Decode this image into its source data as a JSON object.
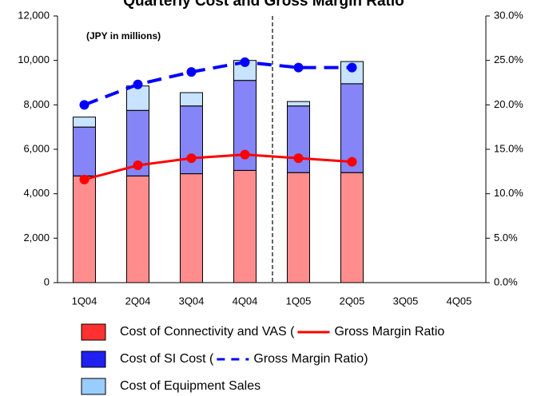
{
  "chart_data": {
    "type": "bar",
    "title": "Quarterly Cost and Gross Margin Ratio",
    "annotation": "(JPY in millions)",
    "categories": [
      "1Q04",
      "2Q04",
      "3Q04",
      "4Q04",
      "1Q05",
      "2Q05",
      "3Q05",
      "4Q05"
    ],
    "series": [
      {
        "name": "Cost of Connectivity and VAS (",
        "color": "#ff3030",
        "type": "bar",
        "values": [
          4800,
          4800,
          4900,
          5050,
          4950,
          4950,
          null,
          null
        ]
      },
      {
        "name": "Cost of SI Cost (",
        "color": "#2020f0",
        "type": "bar",
        "values": [
          2200,
          2950,
          3050,
          4050,
          3000,
          4000,
          null,
          null
        ]
      },
      {
        "name": "Cost of Equipment Sales",
        "color": "#99ccff",
        "type": "bar",
        "values": [
          450,
          1100,
          600,
          900,
          200,
          1000,
          null,
          null
        ]
      },
      {
        "name": "Gross Margin Ratio",
        "color": "#ff0000",
        "type": "line",
        "axis": "y2",
        "dashed": false,
        "values": [
          11.6,
          13.2,
          14.0,
          14.4,
          14.0,
          13.6,
          null,
          null
        ]
      },
      {
        "name": "Gross Margin Ratio)",
        "color": "#0000ff",
        "type": "line",
        "axis": "y2",
        "dashed": true,
        "values": [
          20.0,
          22.3,
          23.7,
          24.8,
          24.2,
          24.2,
          null,
          null
        ]
      }
    ],
    "stacked": true,
    "ylim": [
      0,
      12000
    ],
    "yticks": [
      0,
      {
        "value": 2000,
        "label": "2,000"
      },
      {
        "value": 4000,
        "label": "4,000"
      },
      {
        "value": 6000,
        "label": "6,000"
      },
      {
        "value": 8000,
        "label": "8,000"
      },
      {
        "value": 10000,
        "label": "10,000"
      },
      {
        "value": 12000,
        "label": "12,000"
      }
    ],
    "y2lim": [
      0,
      30
    ],
    "y2ticks": [
      {
        "value": 0,
        "label": "0.0%"
      },
      {
        "value": 5,
        "label": "5.0%"
      },
      {
        "value": 10,
        "label": "10.0%"
      },
      {
        "value": 15,
        "label": "15.0%"
      },
      {
        "value": 20,
        "label": "20.0%"
      },
      {
        "value": 25,
        "label": "25.0%"
      },
      {
        "value": 30,
        "label": "30.0%"
      }
    ],
    "grid": false,
    "legend": "bottom"
  }
}
